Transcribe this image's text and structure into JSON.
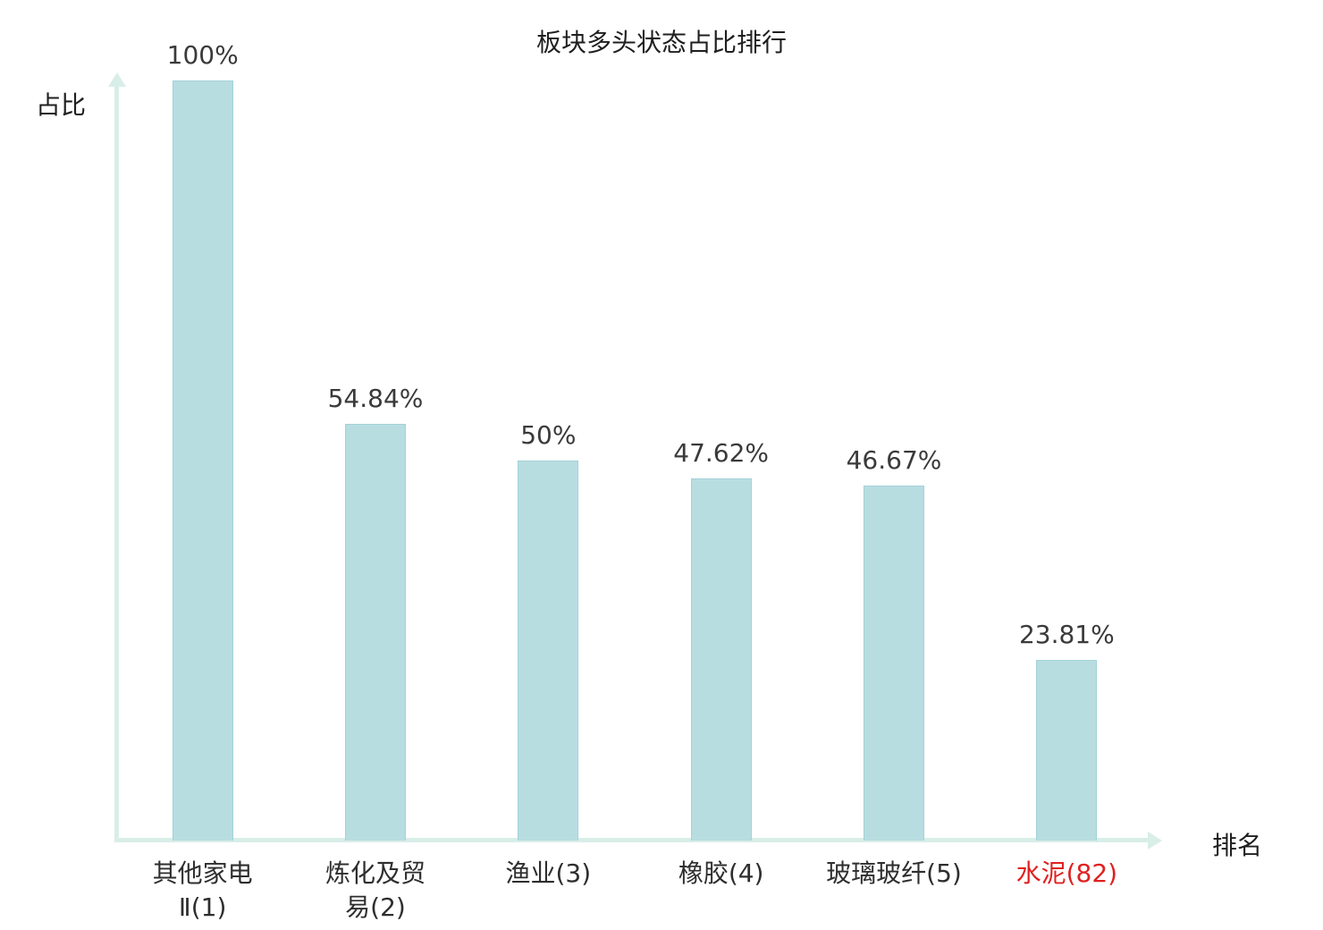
{
  "chart_data": {
    "type": "bar",
    "title": "板块多头状态占比排行",
    "ylabel": "占比",
    "xlabel": "排名",
    "categories": [
      "其他家电Ⅱ(1)",
      "炼化及贸易(2)",
      "渔业(3)",
      "橡胶(4)",
      "玻璃玻纤(5)",
      "水泥(82)"
    ],
    "category_lines": [
      [
        "其他家电",
        "Ⅱ(1)"
      ],
      [
        "炼化及贸",
        "易(2)"
      ],
      [
        "渔业(3)"
      ],
      [
        "橡胶(4)"
      ],
      [
        "玻璃玻纤(5)"
      ],
      [
        "水泥(82)"
      ]
    ],
    "values": [
      100,
      54.84,
      50,
      47.62,
      46.67,
      23.81
    ],
    "value_labels": [
      "100%",
      "54.84%",
      "50%",
      "47.62%",
      "46.67%",
      "23.81%"
    ],
    "highlight_index": 5,
    "ylim": [
      0,
      100
    ],
    "legend": false,
    "grid": false,
    "bar_color": "#b8dde1",
    "axis_color": "#d9eee8",
    "label_color": "#3a3a3a",
    "highlight_color": "#e02020"
  }
}
